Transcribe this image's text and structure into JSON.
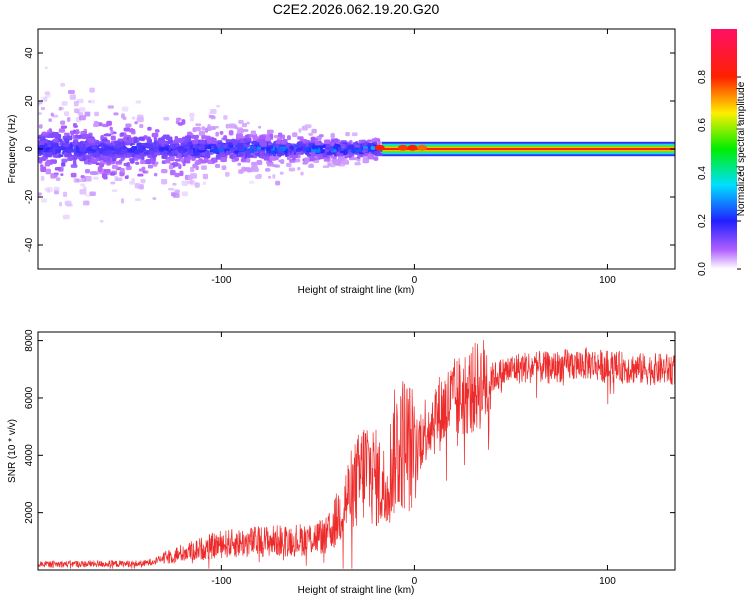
{
  "title": "C2E2.2026.062.19.20.G20",
  "colors": {
    "snr_line": "#ee2b2b",
    "background": "#ffffff",
    "axis": "#000000"
  },
  "chart_data": [
    {
      "type": "heatmap",
      "name": "spectrogram",
      "xlabel": "Height of straight line (km)",
      "ylabel": "Frequency (Hz)",
      "xlim": [
        -195,
        135
      ],
      "ylim": [
        -50,
        50
      ],
      "xticks": [
        -100,
        0,
        100
      ],
      "xtick_labels": [
        "-100",
        "0",
        "100"
      ],
      "yticks": [
        -40,
        -20,
        0,
        20,
        40
      ],
      "ytick_labels": [
        "-40",
        "-20",
        "0",
        "20",
        "40"
      ],
      "colorbar": {
        "label": "Normalized spectral amplitude",
        "range": [
          0.0,
          1.0
        ],
        "ticks": [
          0.0,
          0.2,
          0.4,
          0.6,
          0.8
        ],
        "tick_labels": [
          "0.0",
          "0.2",
          "0.4",
          "0.6",
          "0.8"
        ],
        "colormap": "rainbow (purple-blue-cyan-green-yellow-red-magenta)"
      },
      "description_of_content": {
        "dominant_frequency_hz": 0,
        "clean_band_start_km": -20,
        "clean_band_amplitude": 0.8,
        "noisy_region_km": [
          -195,
          -20
        ]
      }
    },
    {
      "type": "line",
      "name": "snr",
      "xlabel": "Height of straight line (km)",
      "ylabel": "SNR (10 * v/v)",
      "xlim": [
        -195,
        135
      ],
      "ylim": [
        0,
        8300
      ],
      "xticks": [
        -100,
        0,
        100
      ],
      "xtick_labels": [
        "-100",
        "0",
        "100"
      ],
      "yticks": [
        2000,
        4000,
        6000,
        8000
      ],
      "ytick_labels": [
        "2000",
        "4000",
        "6000",
        "8000"
      ],
      "series": [
        {
          "name": "SNR",
          "color": "#ee2b2b",
          "envelope_x": [
            -195,
            -140,
            -120,
            -100,
            -80,
            -60,
            -45,
            -40,
            -35,
            -30,
            -25,
            -20,
            -15,
            -10,
            -5,
            0,
            5,
            10,
            15,
            20,
            30,
            40,
            50,
            60,
            70,
            80,
            90,
            100,
            110,
            120,
            135
          ],
          "envelope_y": [
            200,
            220,
            600,
            900,
            1000,
            1050,
            1200,
            1800,
            2500,
            3000,
            3600,
            3200,
            2800,
            4200,
            4500,
            4100,
            4900,
            5300,
            5600,
            5900,
            6300,
            6700,
            7000,
            7100,
            7050,
            7150,
            7200,
            7100,
            7050,
            7000,
            7000
          ]
        }
      ]
    }
  ]
}
